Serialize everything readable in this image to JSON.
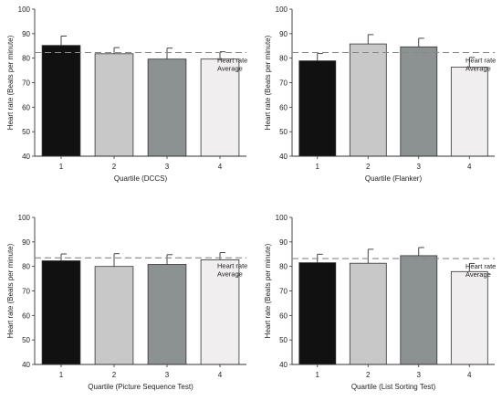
{
  "chart_data": [
    {
      "type": "bar",
      "categories": [
        "1",
        "2",
        "3",
        "4"
      ],
      "values": [
        85.2,
        81.8,
        79.6,
        79.6
      ],
      "errors": [
        3.8,
        2.5,
        4.5,
        3.0
      ],
      "average": 82.3,
      "average_label": [
        "Heart rate",
        "Average"
      ],
      "xlabel": "Quartile (DCCS)",
      "ylabel": "Heart rate (Beats per minute)",
      "ylim": [
        40,
        100
      ],
      "yticks": [
        40,
        50,
        60,
        70,
        80,
        90,
        100
      ]
    },
    {
      "type": "bar",
      "categories": [
        "1",
        "2",
        "3",
        "4"
      ],
      "values": [
        78.9,
        85.8,
        84.6,
        76.3
      ],
      "errors": [
        3.0,
        3.8,
        3.5,
        4.0
      ],
      "average": 82.3,
      "average_label": [
        "Heart rate",
        "Average"
      ],
      "xlabel": "Quartile (Flanker)",
      "ylabel": "Heart rate (Beats per minute)",
      "ylim": [
        40,
        100
      ],
      "yticks": [
        40,
        50,
        60,
        70,
        80,
        90,
        100
      ]
    },
    {
      "type": "bar",
      "categories": [
        "1",
        "2",
        "3",
        "4"
      ],
      "values": [
        82.3,
        80.0,
        80.8,
        82.7
      ],
      "errors": [
        2.8,
        5.2,
        4.0,
        2.9
      ],
      "average": 83.5,
      "average_label": [
        "Heart rate",
        "Average"
      ],
      "xlabel": "Quartile (Picture Sequence Test)",
      "ylabel": "Heart rate (Beats per minute)",
      "ylim": [
        40,
        100
      ],
      "yticks": [
        40,
        50,
        60,
        70,
        80,
        90,
        100
      ]
    },
    {
      "type": "bar",
      "categories": [
        "1",
        "2",
        "3",
        "4"
      ],
      "values": [
        81.5,
        81.3,
        84.4,
        77.9
      ],
      "errors": [
        3.5,
        5.7,
        3.3,
        3.3
      ],
      "average": 83.2,
      "average_label": [
        "Heart rate",
        "Average"
      ],
      "xlabel": "Quartile (List Sorting Test)",
      "ylabel": "Heart rate (Beats per minute)",
      "ylim": [
        40,
        100
      ],
      "yticks": [
        40,
        50,
        60,
        70,
        80,
        90,
        100
      ]
    }
  ],
  "colors": {
    "bars": [
      "#111111",
      "#c8c8c8",
      "#8c9292",
      "#f0eeee"
    ],
    "bar_stroke": "#333333",
    "axis": "#333333",
    "average_line": "#888888",
    "text": "#222222"
  }
}
